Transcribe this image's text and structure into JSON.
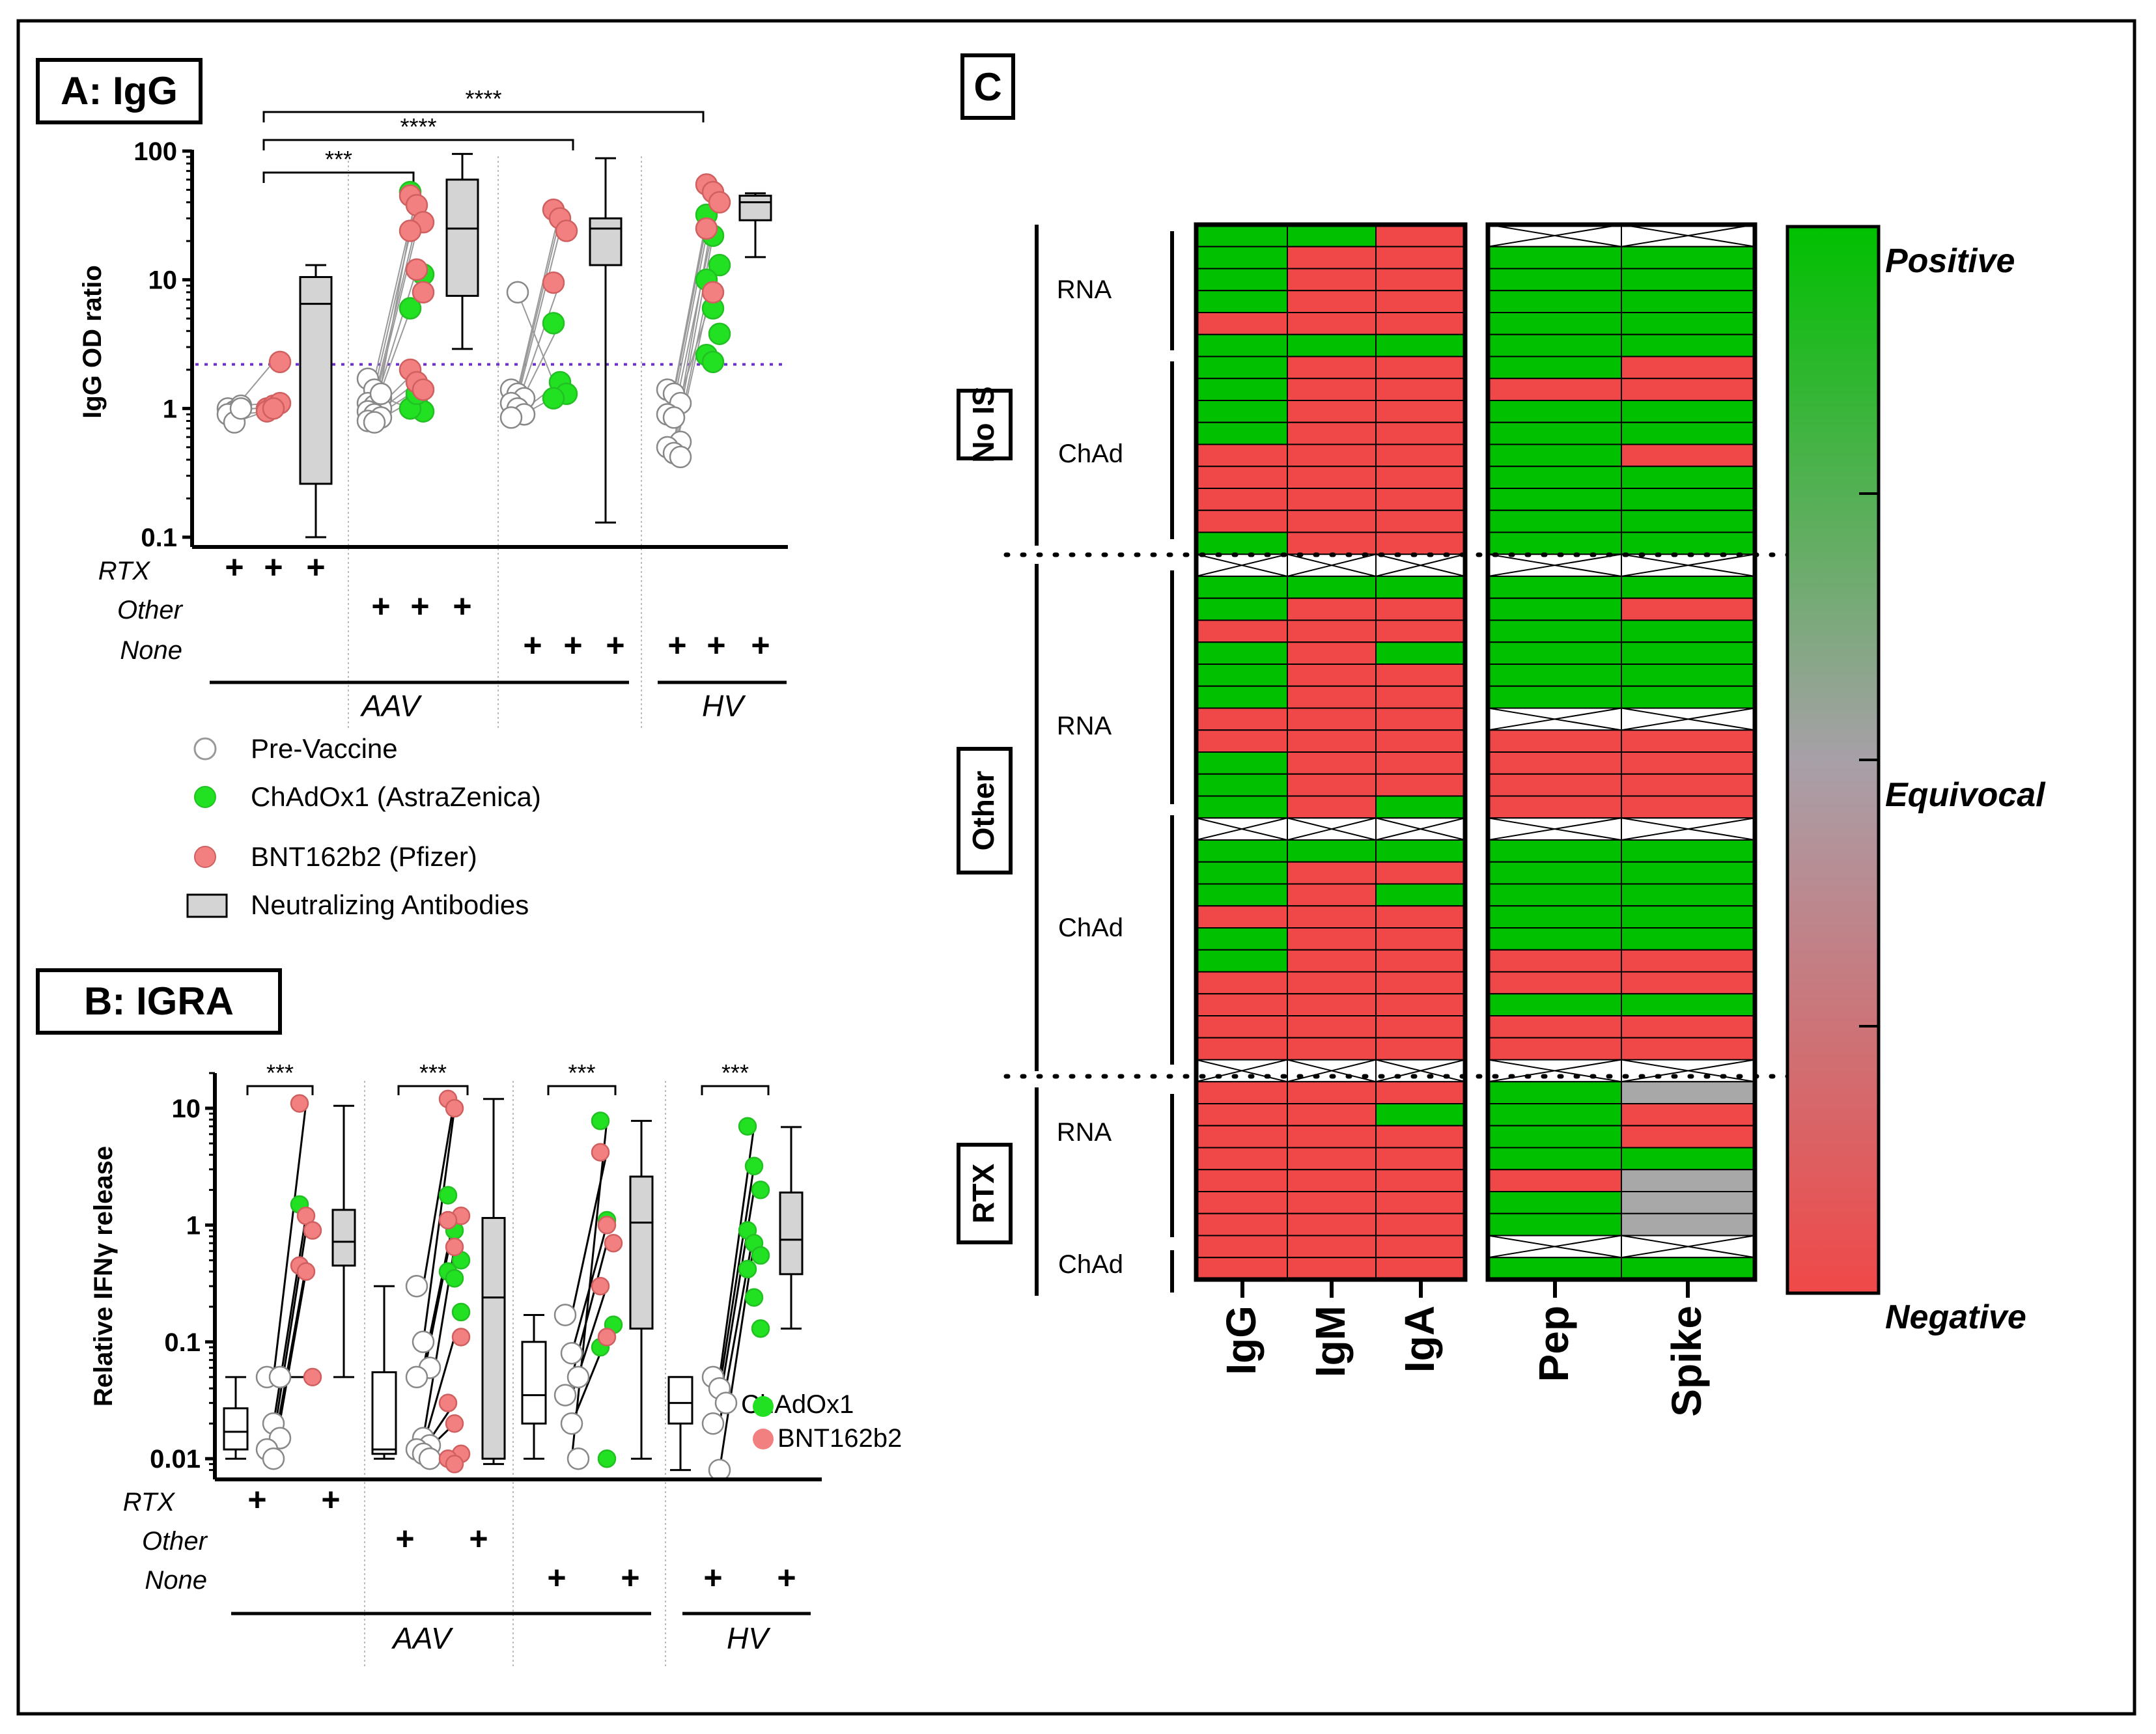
{
  "colors": {
    "positive": "#00c000",
    "negative": "#f04848",
    "equivocal": "#a8a8a8",
    "chadox1": "#22e022",
    "bnt162b2": "#f28080",
    "prevaccine": "#ffffff",
    "box": "#d4d4d4",
    "cutoff": "#7030d0"
  },
  "panelA": {
    "title": "A: IgG",
    "ylabel": "IgG OD ratio",
    "yticks": [
      "100",
      "10",
      "1",
      "0.1"
    ],
    "sig": [
      "***",
      "****",
      "****"
    ],
    "row_labels": [
      "RTX",
      "Other",
      "None"
    ],
    "plus": "+",
    "group_labels": [
      "AAV",
      "HV"
    ],
    "legend": [
      "Pre-Vaccine",
      "ChAdOx1 (AstraZenica)",
      "BNT162b2 (Pfizer)",
      "Neutralizing Antibodies"
    ]
  },
  "panelB": {
    "title": "B: IGRA",
    "ylabel": "Relative IFNγ release",
    "yticks": [
      "10",
      "1",
      "0.1",
      "0.01"
    ],
    "sig": [
      "***",
      "***",
      "***",
      "***"
    ],
    "row_labels": [
      "RTX",
      "Other",
      "None"
    ],
    "plus": "+",
    "group_labels": [
      "AAV",
      "HV"
    ],
    "legend": [
      "ChAdOx1",
      "BNT162b2"
    ]
  },
  "panelC": {
    "title": "C",
    "groups": [
      "No IS",
      "Other",
      "RTX"
    ],
    "subgroups": [
      "RNA",
      "ChAd",
      "RNA",
      "ChAd",
      "RNA",
      "ChAd"
    ],
    "columns_left": [
      "IgG",
      "IgM",
      "IgA"
    ],
    "columns_right": [
      "Pep",
      "Spike"
    ],
    "scale_labels": [
      "Positive",
      "Equivocal",
      "Negative"
    ]
  },
  "chart_data": [
    {
      "type": "scatter",
      "title": "A: IgG",
      "ylabel": "IgG OD ratio",
      "yscale": "log",
      "ylim": [
        0.1,
        100
      ],
      "cutoff": 2.2,
      "groups": [
        {
          "name": "AAV RTX",
          "pre": [
            1.0,
            0.95,
            1.05,
            0.9,
            0.78,
            1.0
          ],
          "chadox1": [],
          "bnt162b2": [
            1.0,
            1.05,
            1.1,
            0.95,
            1.0,
            2.3
          ],
          "box": {
            "min": 0.1,
            "q1": 0.26,
            "median": 6.5,
            "q3": 10.5,
            "max": 13
          }
        },
        {
          "name": "AAV Other",
          "pre": [
            1.7,
            1.4,
            1.2,
            1.1,
            1.05,
            1.0,
            0.95,
            0.9,
            0.85,
            0.8,
            0.78,
            1.3
          ],
          "chadox1": [
            48,
            1.2,
            0.95,
            1.0,
            1.3,
            11,
            6
          ],
          "bnt162b2": [
            45,
            38,
            28,
            24,
            12,
            8,
            2.0,
            1.6,
            1.4
          ],
          "box": {
            "min": 2.9,
            "q1": 7.5,
            "median": 25,
            "q3": 60,
            "max": 95
          }
        },
        {
          "name": "AAV None",
          "pre": [
            1.4,
            1.3,
            1.2,
            1.1,
            1.0,
            0.9,
            0.85,
            8
          ],
          "chadox1": [
            4.6,
            1.6,
            1.3,
            1.2
          ],
          "bnt162b2": [
            35,
            30,
            24,
            9.5
          ],
          "box": {
            "min": 0.13,
            "q1": 13,
            "median": 25,
            "q3": 30,
            "max": 88
          }
        },
        {
          "name": "HV None",
          "pre": [
            1.4,
            1.3,
            1.1,
            0.9,
            0.85,
            0.55,
            0.5,
            0.45,
            0.42
          ],
          "chadox1": [
            32,
            22,
            13,
            10,
            6,
            3.8,
            2.6,
            2.3
          ],
          "bnt162b2": [
            55,
            48,
            40,
            25,
            8
          ],
          "box": {
            "min": 15,
            "q1": 29,
            "median": 40,
            "q3": 45,
            "max": 47
          }
        }
      ]
    },
    {
      "type": "scatter",
      "title": "B: IGRA",
      "ylabel": "Relative IFNγ release",
      "yscale": "log",
      "ylim": [
        0.007,
        20
      ],
      "groups": [
        {
          "name": "AAV RTX",
          "pre": [
            0.05,
            0.02,
            0.015,
            0.012,
            0.01,
            0.05
          ],
          "chadox1": [
            1.5
          ],
          "bnt162b2": [
            11,
            1.2,
            0.9,
            0.45,
            0.4,
            0.05
          ],
          "prebox": {
            "min": 0.01,
            "q1": 0.012,
            "median": 0.017,
            "q3": 0.027,
            "max": 0.05
          },
          "box": {
            "min": 0.05,
            "q1": 0.45,
            "median": 0.72,
            "q3": 1.35,
            "max": 10.5
          }
        },
        {
          "name": "AAV Other",
          "pre": [
            0.3,
            0.1,
            0.06,
            0.05,
            0.015,
            0.013,
            0.012,
            0.011,
            0.01
          ],
          "chadox1": [
            1.8,
            0.9,
            0.5,
            0.4,
            0.35,
            0.18
          ],
          "bnt162b2": [
            12,
            10,
            1.2,
            1.1,
            0.65,
            0.11,
            0.03,
            0.02,
            0.011,
            0.01,
            0.009
          ],
          "prebox": {
            "min": 0.01,
            "q1": 0.011,
            "median": 0.012,
            "q3": 0.055,
            "max": 0.3
          },
          "box": {
            "min": 0.009,
            "q1": 0.01,
            "median": 0.24,
            "q3": 1.15,
            "max": 12
          }
        },
        {
          "name": "AAV None",
          "pre": [
            0.17,
            0.08,
            0.05,
            0.035,
            0.02,
            0.01
          ],
          "chadox1": [
            7.8,
            1.1,
            0.14,
            0.09,
            0.01
          ],
          "bnt162b2": [
            4.2,
            1.0,
            0.7,
            0.3,
            0.11
          ],
          "prebox": {
            "min": 0.01,
            "q1": 0.02,
            "median": 0.035,
            "q3": 0.1,
            "max": 0.17
          },
          "box": {
            "min": 0.01,
            "q1": 0.13,
            "median": 1.05,
            "q3": 2.6,
            "max": 7.8
          }
        },
        {
          "name": "HV None",
          "pre": [
            0.05,
            0.04,
            0.03,
            0.02,
            0.008
          ],
          "chadox1": [
            7,
            3.2,
            2.0,
            0.9,
            0.7,
            0.55,
            0.42,
            0.24,
            0.13
          ],
          "bnt162b2": [],
          "prebox": {
            "min": 0.008,
            "q1": 0.02,
            "median": 0.03,
            "q3": 0.05,
            "max": 0.05
          },
          "box": {
            "min": 0.13,
            "q1": 0.38,
            "median": 0.75,
            "q3": 1.9,
            "max": 6.9
          }
        }
      ]
    },
    {
      "type": "heatmap",
      "title": "C",
      "legend": "G = positive, R = negative, Q = equivocal (gray), X = no data",
      "columns": [
        "IgG",
        "IgM",
        "IgA",
        "Pep",
        "Spike"
      ],
      "rows": [
        "GGRXX",
        "GRRGG",
        "GRRGG",
        "GRRGG",
        "RRRGG",
        "GGGGG",
        "GRRGR",
        "GRRRR",
        "GRRGG",
        "GRRGG",
        "RRRGR",
        "RRRGG",
        "RRRGG",
        "RRRGG",
        "GRRGG",
        "XXXXX",
        "GGGGG",
        "GRRGR",
        "RRRGG",
        "GRGGG",
        "GRRGG",
        "GRRGG",
        "RRRXX",
        "RRRRR",
        "GRRRR",
        "GRRRR",
        "GRGRR",
        "XXXXX",
        "GGGGG",
        "GRRGG",
        "GRGGG",
        "RRRGG",
        "GRRGG",
        "GRRRR",
        "RRRRR",
        "RRRGG",
        "RRRRR",
        "RRRRR",
        "XXXXX",
        "RRRGQ",
        "RRGGR",
        "RRRGR",
        "RRRGG",
        "RRRRQ",
        "RRRGQ",
        "RRRGQ",
        "RRRXX",
        "RRRGG"
      ]
    }
  ]
}
